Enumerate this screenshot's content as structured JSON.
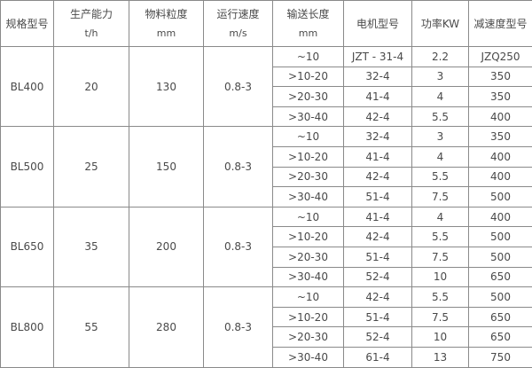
{
  "headers": [
    {
      "label": "规格型号",
      "unit": ""
    },
    {
      "label": "生产能力",
      "unit": "t/h"
    },
    {
      "label": "物料粒度",
      "unit": "mm"
    },
    {
      "label": "运行速度",
      "unit": "m/s"
    },
    {
      "label": "输送长度",
      "unit": "mm"
    },
    {
      "label": "电机型号",
      "unit": ""
    },
    {
      "label": "功率KW",
      "unit": ""
    },
    {
      "label": "减速度型号",
      "unit": ""
    }
  ],
  "groups": [
    {
      "model": "BL400",
      "capacity": "20",
      "granularity": "130",
      "speed": "0.8-3",
      "rows": [
        {
          "length": "~10",
          "motor": "JZT - 31-4",
          "power": "2.2",
          "reducer": "JZQ250"
        },
        {
          "length": ">10-20",
          "motor": "32-4",
          "power": "3",
          "reducer": "350"
        },
        {
          "length": ">20-30",
          "motor": "41-4",
          "power": "4",
          "reducer": "350"
        },
        {
          "length": ">30-40",
          "motor": "42-4",
          "power": "5.5",
          "reducer": "400"
        }
      ]
    },
    {
      "model": "BL500",
      "capacity": "25",
      "granularity": "150",
      "speed": "0.8-3",
      "rows": [
        {
          "length": "~10",
          "motor": "32-4",
          "power": "3",
          "reducer": "350"
        },
        {
          "length": ">10-20",
          "motor": "41-4",
          "power": "4",
          "reducer": "400"
        },
        {
          "length": ">20-30",
          "motor": "42-4",
          "power": "5.5",
          "reducer": "400"
        },
        {
          "length": ">30-40",
          "motor": "51-4",
          "power": "7.5",
          "reducer": "500"
        }
      ]
    },
    {
      "model": "BL650",
      "capacity": "35",
      "granularity": "200",
      "speed": "0.8-3",
      "rows": [
        {
          "length": "~10",
          "motor": "41-4",
          "power": "4",
          "reducer": "400"
        },
        {
          "length": ">10-20",
          "motor": "42-4",
          "power": "5.5",
          "reducer": "500"
        },
        {
          "length": ">20-30",
          "motor": "51-4",
          "power": "7.5",
          "reducer": "500"
        },
        {
          "length": ">30-40",
          "motor": "52-4",
          "power": "10",
          "reducer": "650"
        }
      ]
    },
    {
      "model": "BL800",
      "capacity": "55",
      "granularity": "280",
      "speed": "0.8-3",
      "rows": [
        {
          "length": "~10",
          "motor": "42-4",
          "power": "5.5",
          "reducer": "500"
        },
        {
          "length": ">10-20",
          "motor": "51-4",
          "power": "7.5",
          "reducer": "650"
        },
        {
          "length": ">20-30",
          "motor": "52-4",
          "power": "10",
          "reducer": "650"
        },
        {
          "length": ">30-40",
          "motor": "61-4",
          "power": "13",
          "reducer": "750"
        }
      ]
    }
  ]
}
